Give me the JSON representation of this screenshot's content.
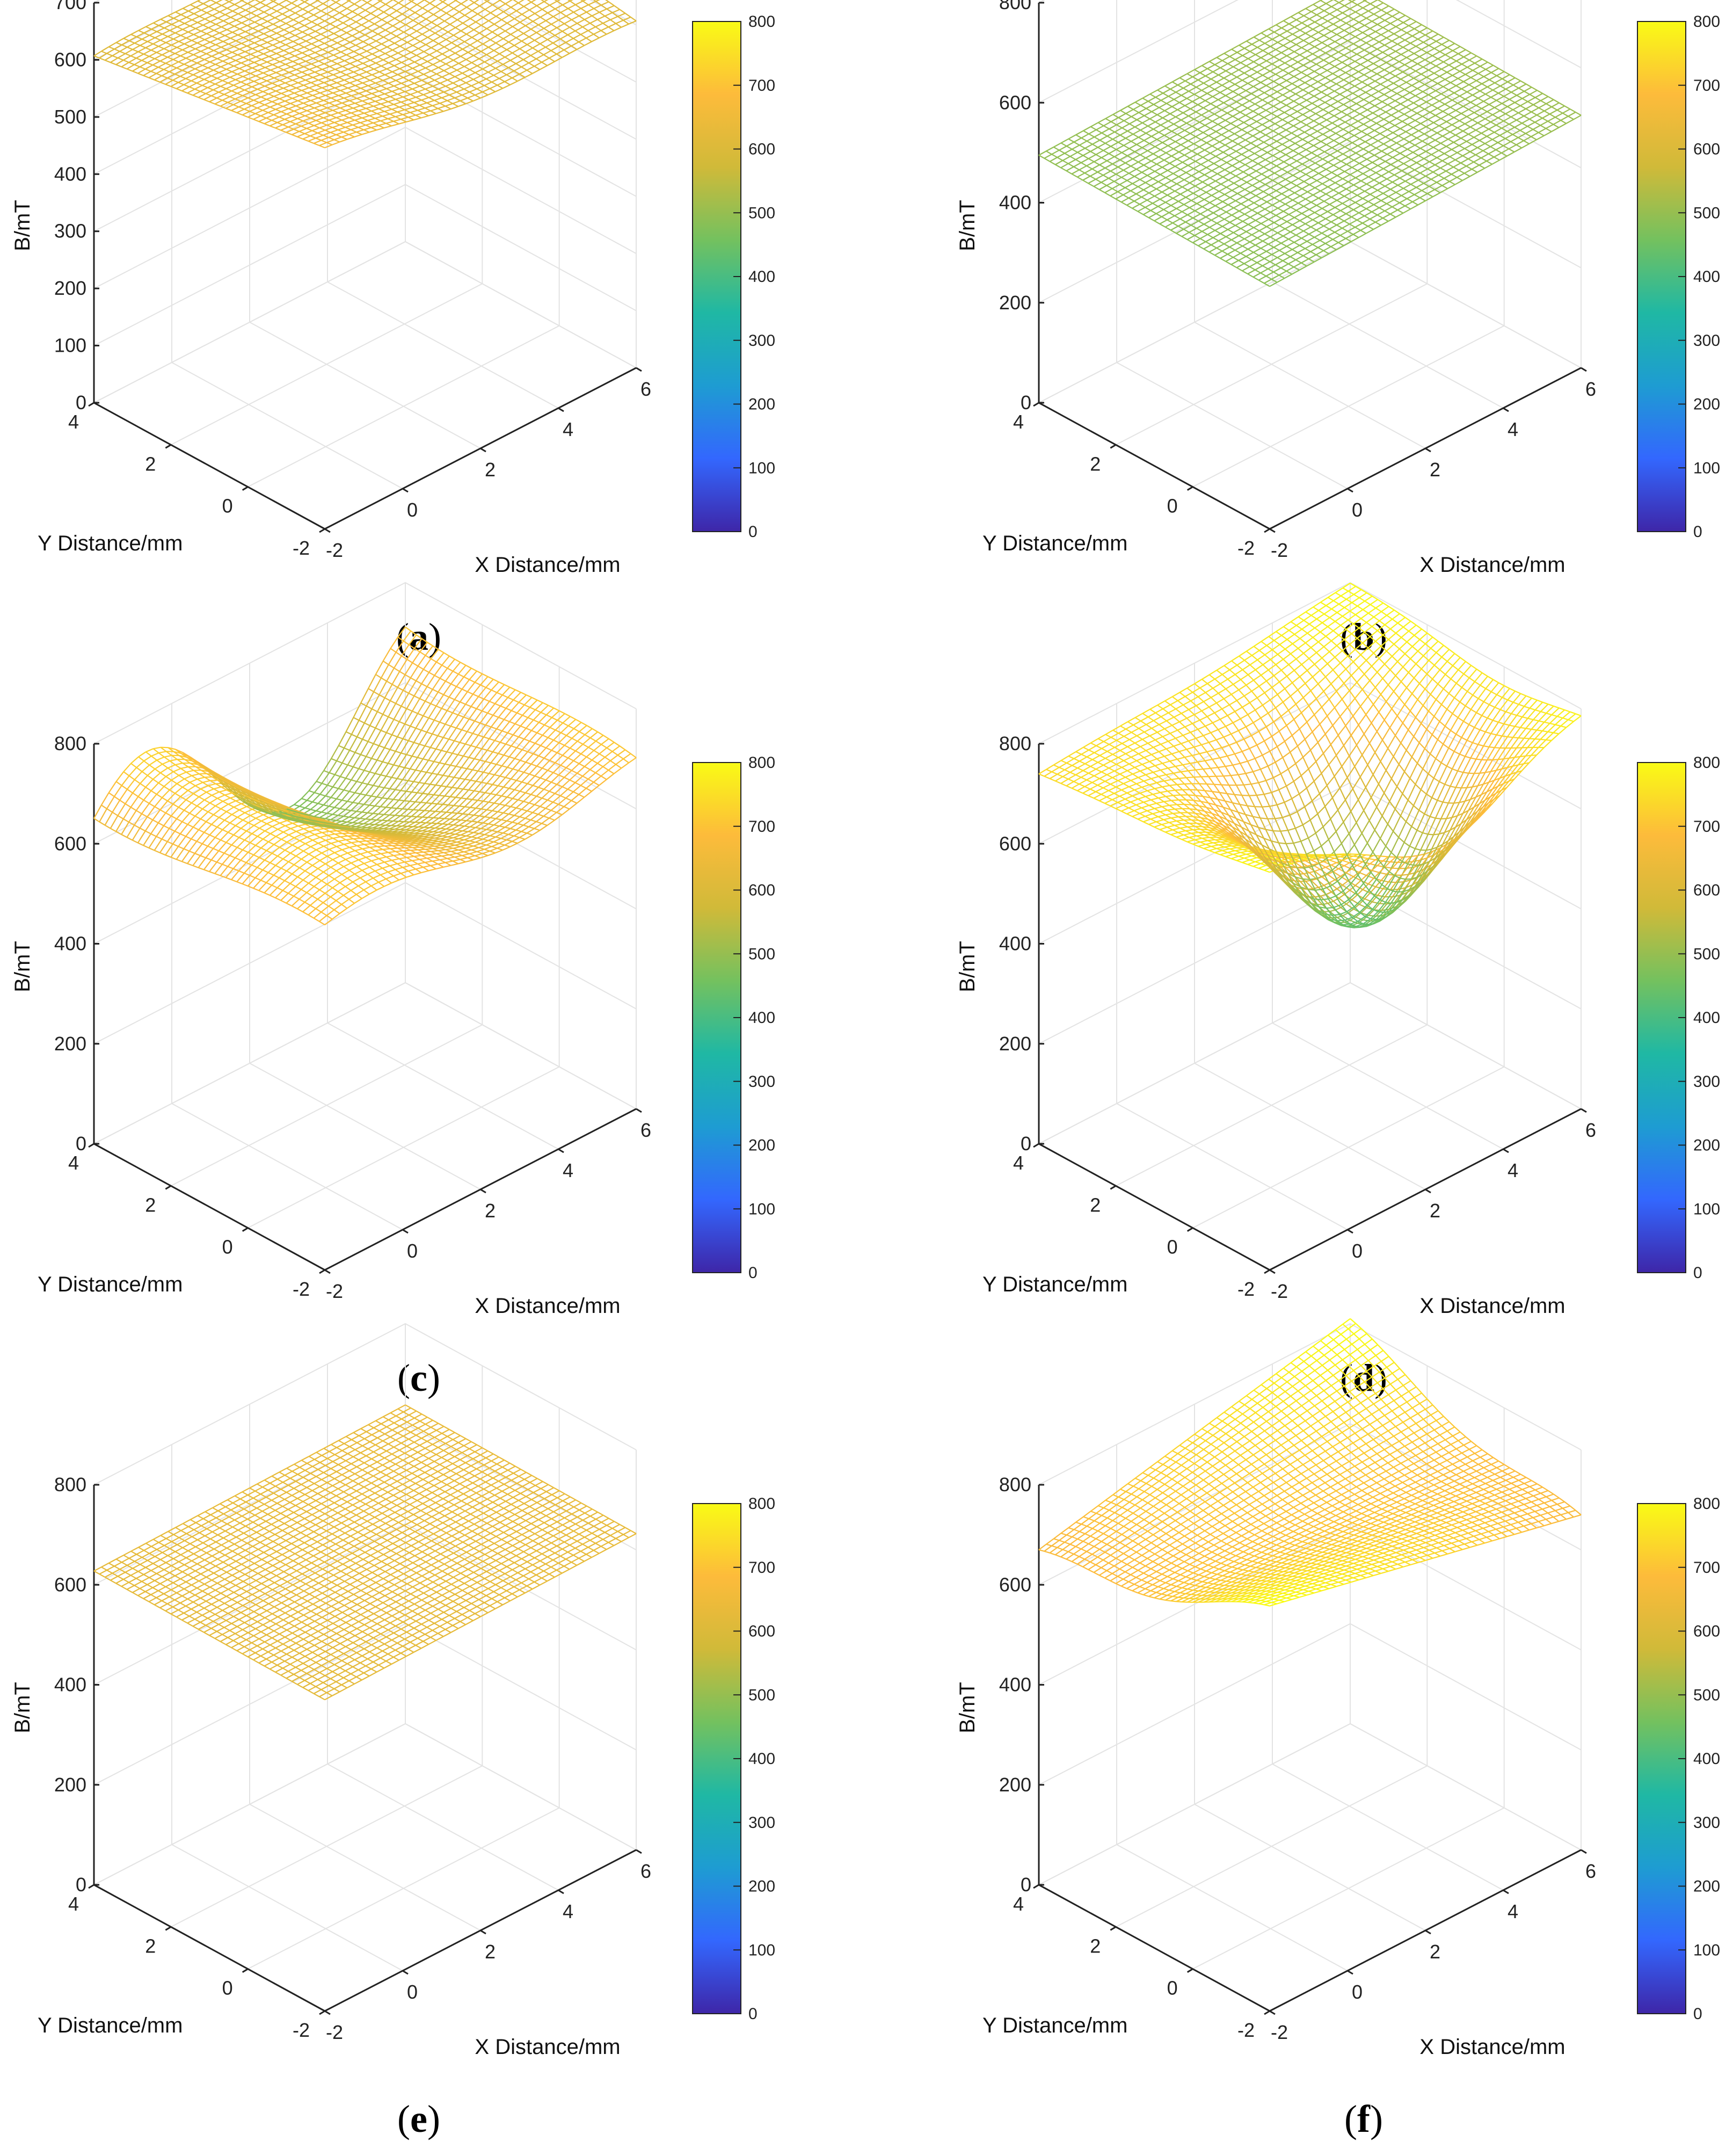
{
  "figure": {
    "colormap": [
      "#3e26a8",
      "#3367fe",
      "#1e9cd2",
      "#1fb8a4",
      "#73c15f",
      "#d0ba39",
      "#fdbb3b",
      "#f9fb15"
    ]
  },
  "chart_data": [
    {
      "type": "surface",
      "label": "a",
      "title": "",
      "xlabel": "X Distance/mm",
      "ylabel": "Y Distance/mm",
      "zlabel": "B/mT",
      "xlim": [
        -2,
        6
      ],
      "ylim": [
        -2,
        4
      ],
      "zlim": [
        0,
        700
      ],
      "xticks": [
        "-2",
        "0",
        "2",
        "4",
        "6"
      ],
      "yticks": [
        "-2",
        "0",
        "2",
        "4"
      ],
      "zticks": [
        "0",
        "100",
        "200",
        "300",
        "400",
        "500",
        "600",
        "700"
      ],
      "colorbar": {
        "range": [
          0,
          800
        ],
        "ticks": [
          "0",
          "100",
          "200",
          "300",
          "400",
          "500",
          "600",
          "700",
          "800"
        ]
      },
      "surface": {
        "description": "nearly flat saddle",
        "mean": 625,
        "corners": {
          "x_min_y_max": 600,
          "x_max_y_max": 660,
          "x_min_y_min": 610,
          "x_max_y_min": 620
        }
      }
    },
    {
      "type": "surface",
      "label": "b",
      "title": "",
      "xlabel": "X Distance/mm",
      "ylabel": "Y Distance/mm",
      "zlabel": "B/mT",
      "xlim": [
        -2,
        6
      ],
      "ylim": [
        -2,
        4
      ],
      "zlim": [
        0,
        800
      ],
      "xticks": [
        "-2",
        "0",
        "2",
        "4",
        "6"
      ],
      "yticks": [
        "-2",
        "0",
        "2",
        "4"
      ],
      "zticks": [
        "0",
        "200",
        "400",
        "600",
        "800"
      ],
      "colorbar": {
        "range": [
          0,
          800
        ],
        "ticks": [
          "0",
          "100",
          "200",
          "300",
          "400",
          "500",
          "600",
          "700",
          "800"
        ]
      },
      "surface": {
        "description": "flat plane",
        "mean": 500,
        "corners": {
          "x_min_y_max": 500,
          "x_max_y_max": 520,
          "x_min_y_min": 480,
          "x_max_y_min": 500
        }
      }
    },
    {
      "type": "surface",
      "label": "c",
      "title": "",
      "xlabel": "X Distance/mm",
      "ylabel": "Y Distance/mm",
      "zlabel": "B/mT",
      "xlim": [
        -2,
        6
      ],
      "ylim": [
        -2,
        4
      ],
      "zlim": [
        0,
        800
      ],
      "xticks": [
        "-2",
        "0",
        "2",
        "4",
        "6"
      ],
      "yticks": [
        "-2",
        "0",
        "2",
        "4"
      ],
      "zticks": [
        "0",
        "200",
        "400",
        "600",
        "800"
      ],
      "colorbar": {
        "range": [
          0,
          800
        ],
        "ticks": [
          "0",
          "100",
          "200",
          "300",
          "400",
          "500",
          "600",
          "700",
          "800"
        ]
      },
      "surface": {
        "description": "wavy saddle oscillating along x",
        "mean": 640,
        "amplitude": 130,
        "min": 480,
        "max": 780
      }
    },
    {
      "type": "surface",
      "label": "d",
      "title": "",
      "xlabel": "X Distance/mm",
      "ylabel": "Y Distance/mm",
      "zlabel": "B/mT",
      "xlim": [
        -2,
        6
      ],
      "ylim": [
        -2,
        4
      ],
      "zlim": [
        0,
        800
      ],
      "xticks": [
        "-2",
        "0",
        "2",
        "4",
        "6"
      ],
      "yticks": [
        "-2",
        "0",
        "2",
        "4"
      ],
      "zticks": [
        "0",
        "200",
        "400",
        "600",
        "800"
      ],
      "colorbar": {
        "range": [
          0,
          800
        ],
        "ticks": [
          "0",
          "100",
          "200",
          "300",
          "400",
          "500",
          "600",
          "700",
          "800"
        ]
      },
      "surface": {
        "description": "bowl / trough shape",
        "mean": 640,
        "min": 440,
        "max": 800
      }
    },
    {
      "type": "surface",
      "label": "e",
      "title": "",
      "xlabel": "X Distance/mm",
      "ylabel": "Y Distance/mm",
      "zlabel": "B/mT",
      "xlim": [
        -2,
        6
      ],
      "ylim": [
        -2,
        4
      ],
      "zlim": [
        0,
        800
      ],
      "xticks": [
        "-2",
        "0",
        "2",
        "4",
        "6"
      ],
      "yticks": [
        "-2",
        "0",
        "2",
        "4"
      ],
      "zticks": [
        "0",
        "200",
        "400",
        "600",
        "800"
      ],
      "colorbar": {
        "range": [
          0,
          800
        ],
        "ticks": [
          "0",
          "100",
          "200",
          "300",
          "400",
          "500",
          "600",
          "700",
          "800"
        ]
      },
      "surface": {
        "description": "flat plane",
        "mean": 630,
        "corners": {
          "x_min_y_max": 630,
          "x_max_y_max": 640,
          "x_min_y_min": 620,
          "x_max_y_min": 630
        }
      }
    },
    {
      "type": "surface",
      "label": "f",
      "title": "",
      "xlabel": "X Distance/mm",
      "ylabel": "Y Distance/mm",
      "zlabel": "B/mT",
      "xlim": [
        -2,
        6
      ],
      "ylim": [
        -2,
        4
      ],
      "zlim": [
        0,
        800
      ],
      "xticks": [
        "-2",
        "0",
        "2",
        "4",
        "6"
      ],
      "yticks": [
        "-2",
        "0",
        "2",
        "4"
      ],
      "zticks": [
        "0",
        "200",
        "400",
        "600",
        "800"
      ],
      "colorbar": {
        "range": [
          0,
          800
        ],
        "ticks": [
          "0",
          "100",
          "200",
          "300",
          "400",
          "500",
          "600",
          "700",
          "800"
        ]
      },
      "surface": {
        "description": "gentle saddle, high field",
        "mean": 720,
        "corners": {
          "x_min_y_max": 680,
          "x_max_y_max": 800,
          "x_min_y_min": 700,
          "x_max_y_min": 720
        }
      }
    }
  ]
}
